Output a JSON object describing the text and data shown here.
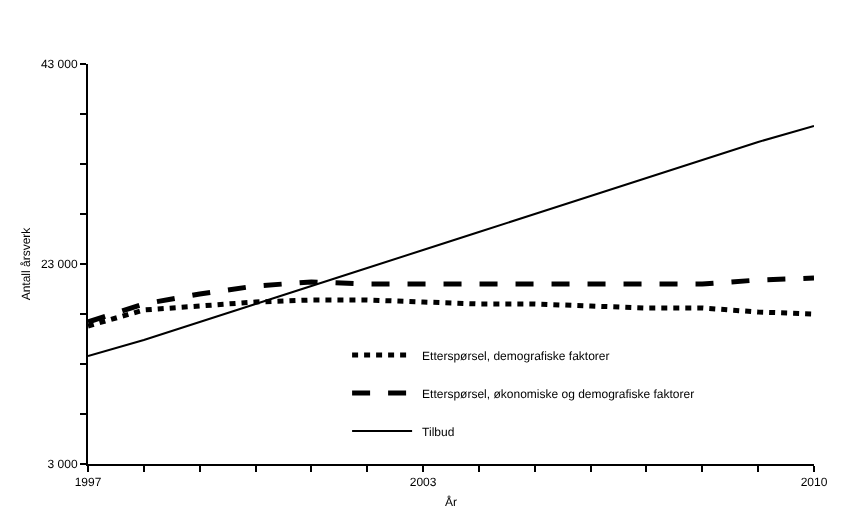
{
  "chart_data": {
    "type": "line",
    "xlabel": "År",
    "ylabel": "Antall årsverk",
    "x": [
      1997,
      1998,
      1999,
      2000,
      2001,
      2002,
      2003,
      2004,
      2005,
      2006,
      2007,
      2008,
      2009,
      2010
    ],
    "series": [
      {
        "name": "Etterspørsel, demografiske faktorer",
        "color": "#000000",
        "line_style": "dotted",
        "values": [
          16800,
          18400,
          18800,
          19200,
          19400,
          19400,
          19200,
          19000,
          19000,
          18800,
          18600,
          18600,
          18200,
          18000
        ]
      },
      {
        "name": "Etterspørsel, økonomiske og demografiske faktorer",
        "color": "#000000",
        "line_style": "dashed",
        "values": [
          17200,
          19000,
          20000,
          20800,
          21200,
          21000,
          21000,
          21000,
          21000,
          21000,
          21000,
          21000,
          21400,
          21600
        ]
      },
      {
        "name": "Tilbud",
        "color": "#000000",
        "line_style": "solid",
        "values": [
          13800,
          15400,
          17200,
          19000,
          20800,
          22600,
          24400,
          26200,
          28000,
          29800,
          31600,
          33400,
          35200,
          36800
        ]
      }
    ],
    "xlim": [
      1997,
      2010
    ],
    "xticks": [
      1997,
      {
        "value": 1998,
        "label": null
      },
      {
        "value": 1999,
        "label": null
      },
      {
        "value": 2000,
        "label": null
      },
      {
        "value": 2001,
        "label": null
      },
      {
        "value": 2002,
        "label": null
      },
      2003,
      {
        "value": 2004,
        "label": null
      },
      {
        "value": 2005,
        "label": null
      },
      {
        "value": 2006,
        "label": null
      },
      {
        "value": 2007,
        "label": null
      },
      {
        "value": 2008,
        "label": null
      },
      {
        "value": 2009,
        "label": null
      },
      2010
    ],
    "ylim": [
      3000,
      43000
    ],
    "yticks": [
      {
        "value": 3000,
        "label": "3 000"
      },
      {
        "value": 8000,
        "label": null
      },
      {
        "value": 13000,
        "label": null
      },
      {
        "value": 18000,
        "label": null
      },
      {
        "value": 23000,
        "label": "23 000"
      },
      {
        "value": 28000,
        "label": null
      },
      {
        "value": 33000,
        "label": null
      },
      {
        "value": 38000,
        "label": null
      },
      {
        "value": 43000,
        "label": "43 000"
      }
    ],
    "legend": "bottom right",
    "marker": "none"
  }
}
